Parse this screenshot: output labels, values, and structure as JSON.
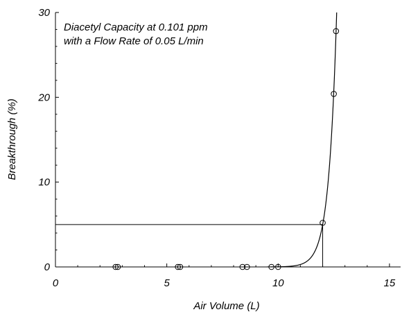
{
  "chart_data": {
    "type": "scatter",
    "title": "",
    "annotation_lines": [
      "Diacetyl Capacity at 0.101 ppm",
      "with a Flow Rate of 0.05 L/min"
    ],
    "xlabel": "Air Volume (L)",
    "ylabel": "Breakthrough (%)",
    "xlim": [
      0,
      15.5
    ],
    "ylim": [
      0,
      30
    ],
    "x_ticks": [
      0,
      5,
      10,
      15
    ],
    "y_ticks": [
      0,
      10,
      20,
      30
    ],
    "grid": false,
    "legend": "none",
    "points": [
      {
        "x": 2.7,
        "y": 0
      },
      {
        "x": 2.8,
        "y": 0
      },
      {
        "x": 5.5,
        "y": 0
      },
      {
        "x": 5.6,
        "y": 0
      },
      {
        "x": 8.4,
        "y": 0
      },
      {
        "x": 8.6,
        "y": 0
      },
      {
        "x": 9.7,
        "y": 0
      },
      {
        "x": 10.0,
        "y": 0
      },
      {
        "x": 12.0,
        "y": 5.2
      },
      {
        "x": 12.5,
        "y": 20.4
      },
      {
        "x": 12.6,
        "y": 27.8
      }
    ],
    "fit_curve": {
      "type": "exponential",
      "reference_x": 12.0,
      "reference_y": 5.0,
      "growth_rate": 2.85
    },
    "reference_lines": {
      "horizontal_y": 5,
      "vertical_x": 12.0
    },
    "colors": {
      "line": "#000000",
      "marker": "#000000"
    }
  }
}
